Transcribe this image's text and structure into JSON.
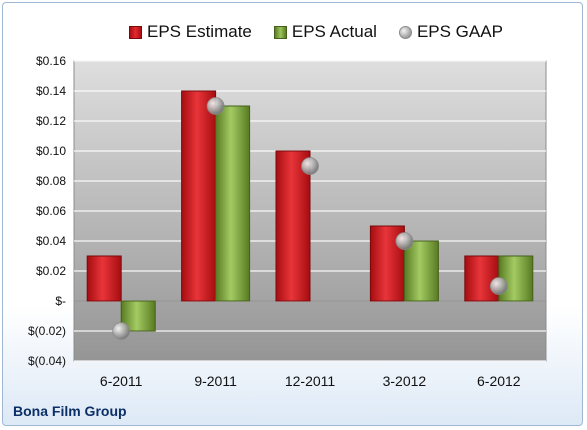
{
  "chart_data": {
    "type": "bar",
    "categories": [
      "6-2011",
      "9-2011",
      "12-2011",
      "3-2012",
      "6-2012"
    ],
    "series": [
      {
        "name": "EPS Estimate",
        "kind": "bar",
        "color": "#d42226",
        "values": [
          0.03,
          0.14,
          0.1,
          0.05,
          0.03
        ]
      },
      {
        "name": "EPS Actual",
        "kind": "bar",
        "color": "#8cb04c",
        "values": [
          -0.02,
          0.13,
          null,
          0.04,
          0.03
        ]
      },
      {
        "name": "EPS GAAP",
        "kind": "marker",
        "color": "#b0b0b0",
        "values": [
          -0.02,
          0.13,
          0.09,
          0.04,
          0.01
        ]
      }
    ],
    "ylim": [
      -0.04,
      0.16
    ],
    "yticks": [
      0.16,
      0.14,
      0.12,
      0.1,
      0.08,
      0.06,
      0.04,
      0.02,
      0,
      -0.02,
      -0.04
    ],
    "ytick_labels": [
      "$0.16",
      "$0.14",
      "$0.12",
      "$0.10",
      "$0.08",
      "$0.06",
      "$0.04",
      "$0.02",
      "$-",
      "$(0.02)",
      "$(0.04)"
    ],
    "title": "",
    "xlabel": "",
    "ylabel": "",
    "legend_position": "top",
    "grid": true
  },
  "caption": "Bona Film Group",
  "colors": {
    "plot_background_top": "#d9d9d9",
    "plot_background_bottom": "#969696",
    "gridline": "#ffffff",
    "caption": "#0b2f66"
  }
}
